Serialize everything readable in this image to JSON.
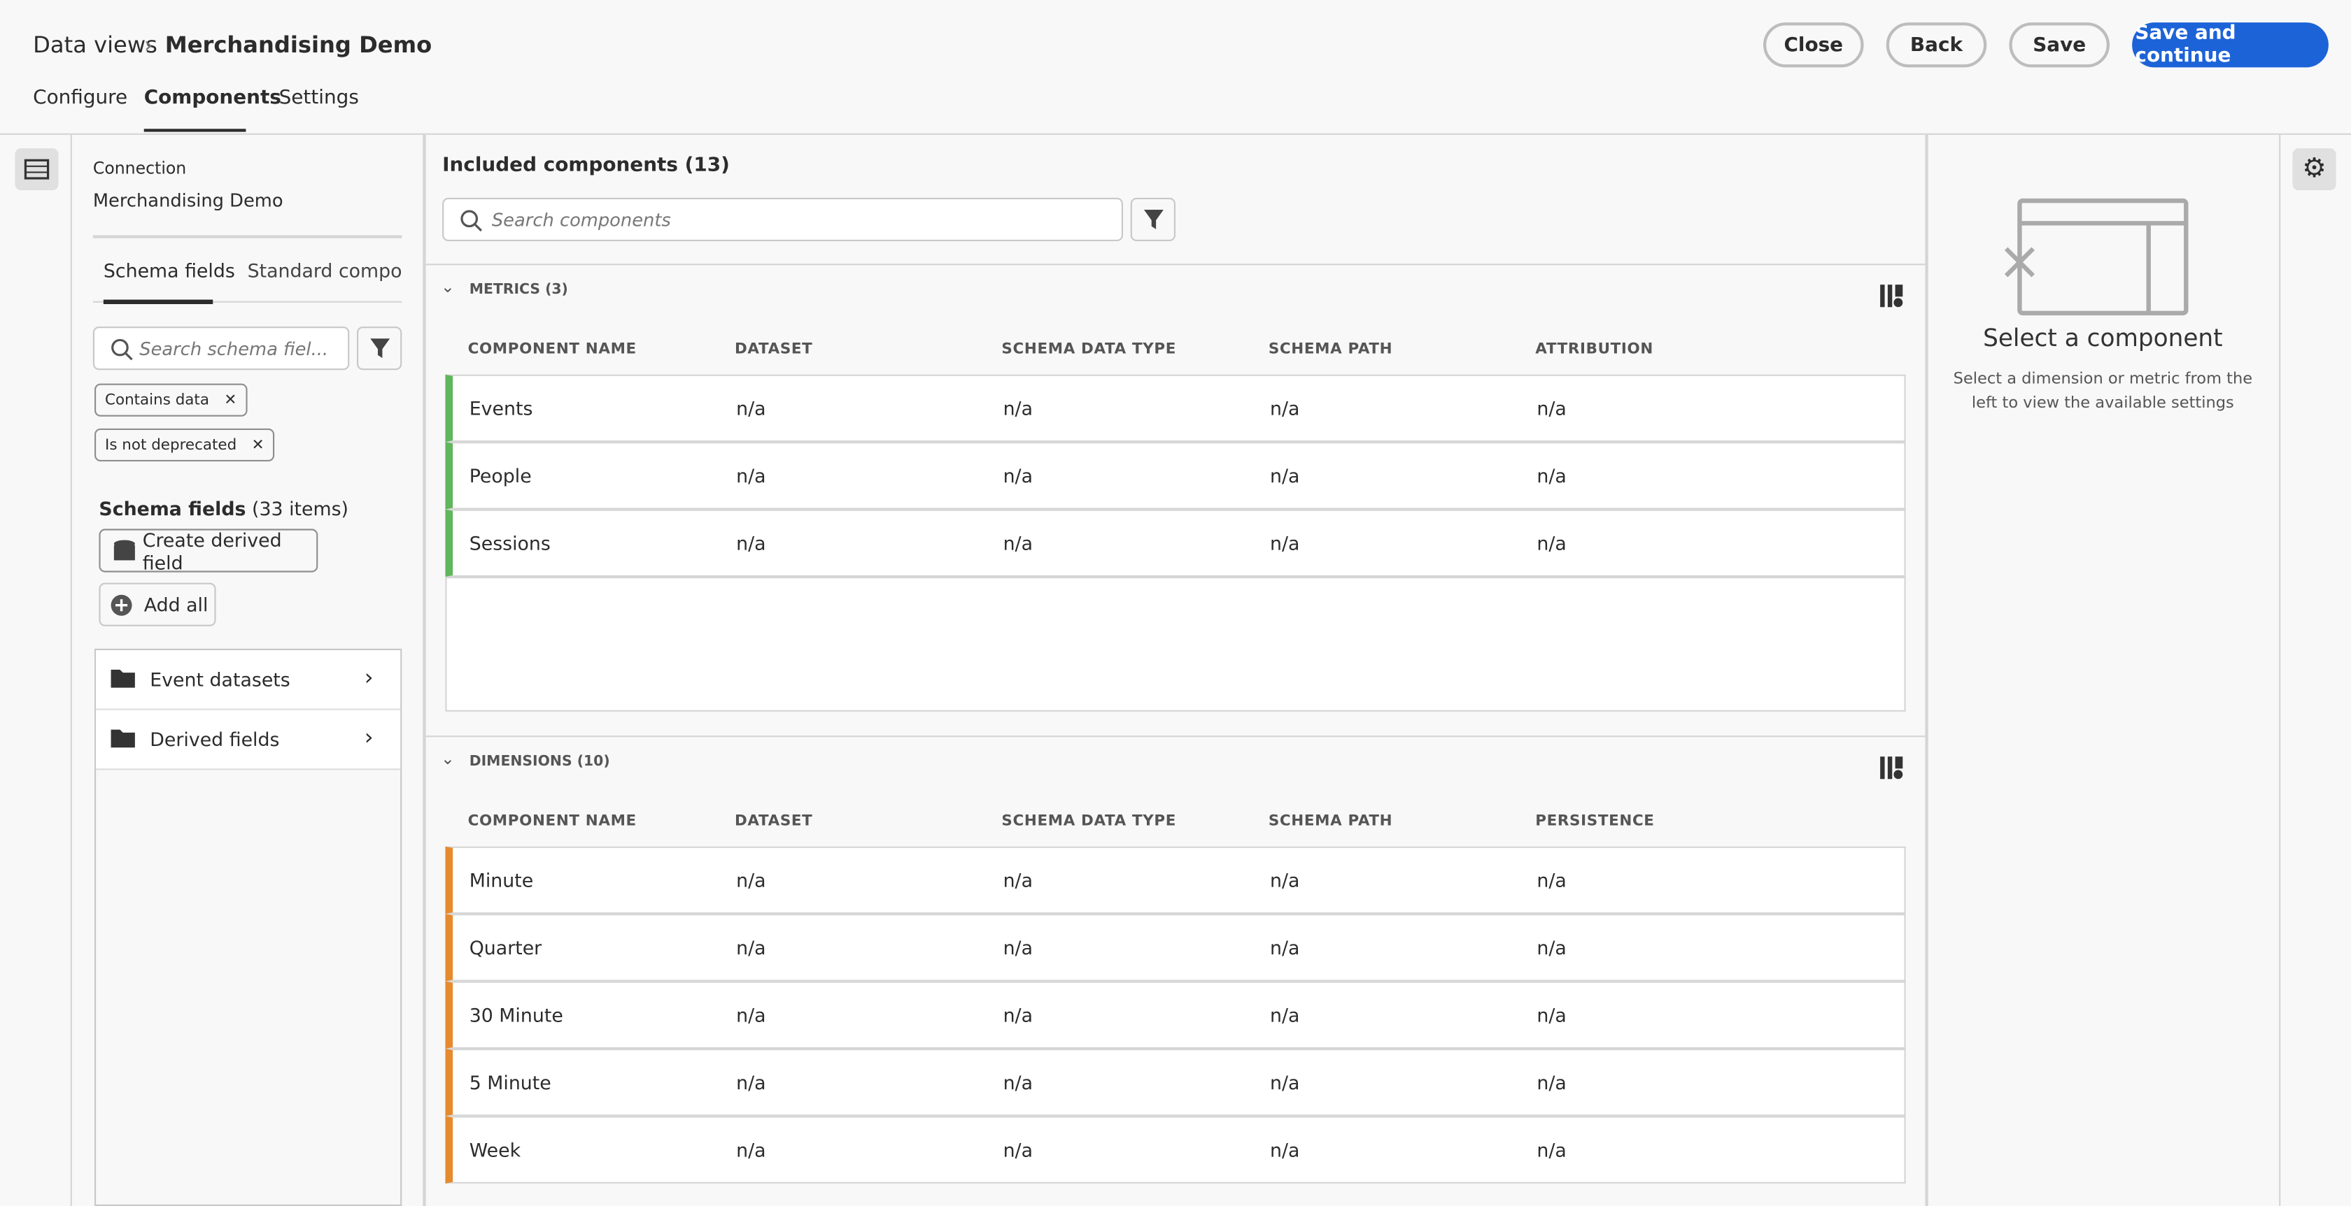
{
  "header": {
    "breadcrumb": "Data views",
    "title": "Merchandising Demo",
    "buttons": [
      "Close",
      "Back",
      "Save",
      "Save and continue"
    ]
  },
  "tabs": [
    "Configure",
    "Components",
    "Settings"
  ],
  "left": {
    "connection_label": "Connection",
    "connection_name": "Merchandising Demo",
    "tabs": [
      "Schema fields",
      "Standard components"
    ],
    "search_placeholder": "Search schema fiel...",
    "filters": [
      "Contains data",
      "Is not deprecated"
    ],
    "list_title": "Schema fields",
    "list_count": "(33 items)",
    "create_button": "Create derived field",
    "add_all": "Add all",
    "folders": [
      "Event datasets",
      "Derived fields"
    ]
  },
  "main": {
    "title": "Included components (13)",
    "search_placeholder": "Search components",
    "sections": [
      {
        "label": "METRICS (3)",
        "columns": [
          "COMPONENT NAME",
          "DATASET",
          "SCHEMA DATA TYPE",
          "SCHEMA PATH",
          "ATTRIBUTION"
        ],
        "rows": [
          [
            "Events",
            "n/a",
            "n/a",
            "n/a",
            "n/a"
          ],
          [
            "People",
            "n/a",
            "n/a",
            "n/a",
            "n/a"
          ],
          [
            "Sessions",
            "n/a",
            "n/a",
            "n/a",
            "n/a"
          ]
        ]
      },
      {
        "label": "DIMENSIONS (10)",
        "columns": [
          "COMPONENT NAME",
          "DATASET",
          "SCHEMA DATA TYPE",
          "SCHEMA PATH",
          "PERSISTENCE"
        ],
        "rows": [
          [
            "Minute",
            "n/a",
            "n/a",
            "n/a",
            "n/a"
          ],
          [
            "Quarter",
            "n/a",
            "n/a",
            "n/a",
            "n/a"
          ],
          [
            "30 Minute",
            "n/a",
            "n/a",
            "n/a",
            "n/a"
          ],
          [
            "5 Minute",
            "n/a",
            "n/a",
            "n/a",
            "n/a"
          ],
          [
            "Week",
            "n/a",
            "n/a",
            "n/a",
            "n/a"
          ]
        ]
      }
    ]
  },
  "right": {
    "title": "Select a component",
    "description": "Select a dimension or metric from the left to view the available settings"
  }
}
